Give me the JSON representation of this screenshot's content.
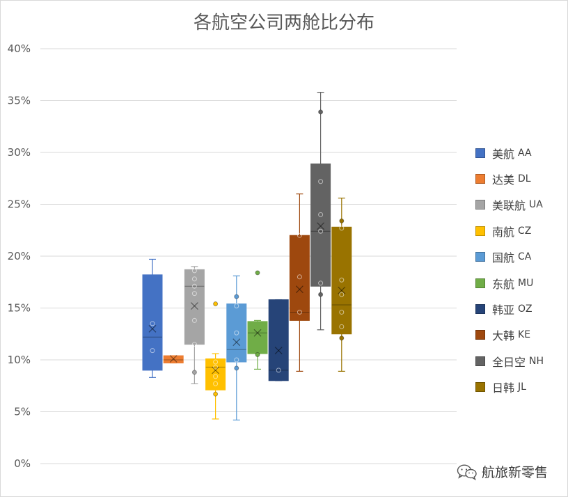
{
  "chart_data": {
    "type": "box",
    "title": "各航空公司两舱比分布",
    "ylim": [
      0,
      40
    ],
    "yticks": [
      "0%",
      "5%",
      "10%",
      "15%",
      "20%",
      "25%",
      "30%",
      "35%",
      "40%"
    ],
    "grid": true,
    "legend_position": "right",
    "series": [
      {
        "name": "美航",
        "code": "AA",
        "color": "#4472C4",
        "min": 8.3,
        "q1": 9.0,
        "median": 12.2,
        "mean": 13.0,
        "q3": 18.2,
        "max": 19.7,
        "points": [
          10.9,
          13.5
        ]
      },
      {
        "name": "达美",
        "code": "DL",
        "color": "#ED7D31",
        "min": 9.7,
        "q1": 9.7,
        "median": 10.0,
        "mean": 10.1,
        "q3": 10.4,
        "max": 10.4,
        "points": []
      },
      {
        "name": "美联航",
        "code": "UA",
        "color": "#A5A5A5",
        "min": 7.7,
        "q1": 11.5,
        "median": 17.1,
        "mean": 15.2,
        "q3": 18.7,
        "max": 19.0,
        "points": [
          8.8,
          11.5,
          13.8,
          16.4,
          17.1,
          17.8,
          18.6
        ]
      },
      {
        "name": "南航",
        "code": "CZ",
        "color": "#FFC000",
        "min": 4.3,
        "q1": 7.1,
        "median": 9.3,
        "mean": 9.0,
        "q3": 10.1,
        "max": 10.6,
        "points": [
          6.7,
          7.7,
          8.4,
          9.3,
          9.8,
          15.4
        ]
      },
      {
        "name": "国航",
        "code": "CA",
        "color": "#5B9BD5",
        "min": 4.2,
        "q1": 9.8,
        "median": 11.0,
        "mean": 11.7,
        "q3": 15.4,
        "max": 18.1,
        "points": [
          9.2,
          10.0,
          12.6,
          15.2,
          16.1
        ]
      },
      {
        "name": "东航",
        "code": "MU",
        "color": "#70AD47",
        "min": 9.1,
        "q1": 10.6,
        "median": 12.6,
        "mean": 12.6,
        "q3": 13.7,
        "max": 13.8,
        "points": [
          10.5,
          18.4
        ]
      },
      {
        "name": "韩亚",
        "code": "OZ",
        "color": "#264478",
        "min": 8.0,
        "q1": 8.0,
        "median": 9.0,
        "mean": 10.9,
        "q3": 15.8,
        "max": 15.8,
        "points": [
          9.0
        ]
      },
      {
        "name": "大韩",
        "code": "KE",
        "color": "#9E480E",
        "min": 8.9,
        "q1": 13.8,
        "median": 14.6,
        "mean": 16.8,
        "q3": 22.0,
        "max": 26.0,
        "points": [
          14.6,
          18.0,
          22.0
        ]
      },
      {
        "name": "全日空",
        "code": "NH",
        "color": "#636363",
        "min": 12.9,
        "q1": 17.1,
        "median": 22.4,
        "mean": 22.9,
        "q3": 28.9,
        "max": 35.8,
        "points": [
          16.3,
          17.4,
          22.4,
          24.0,
          27.2,
          33.9
        ]
      },
      {
        "name": "日韩",
        "code": "JL",
        "color": "#997300",
        "min": 8.9,
        "q1": 12.5,
        "median": 15.3,
        "mean": 16.7,
        "q3": 22.8,
        "max": 25.6,
        "points": [
          12.1,
          13.2,
          14.6,
          16.3,
          17.7,
          22.7,
          23.4
        ]
      }
    ]
  },
  "watermark": {
    "text": "航旅新零售",
    "icon": "wechat-icon"
  }
}
